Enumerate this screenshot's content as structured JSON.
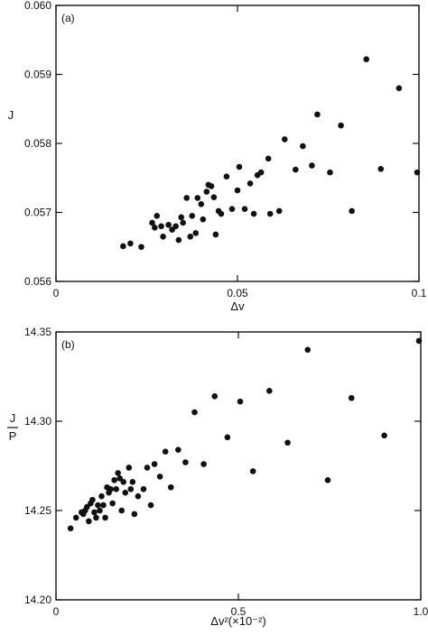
{
  "chart_data": [
    {
      "type": "scatter",
      "panel_label": "(a)",
      "xlabel": "Δv",
      "ylabel": "J",
      "xlim": [
        0,
        0.1
      ],
      "ylim": [
        0.056,
        0.06
      ],
      "x_ticks": [
        0,
        0.05,
        0.1
      ],
      "x_tick_labels": [
        "0",
        "0.05",
        "0.1"
      ],
      "y_ticks": [
        0.056,
        0.057,
        0.058,
        0.059,
        0.06
      ],
      "y_tick_labels": [
        "0.056",
        "0.057",
        "0.058",
        "0.059",
        "0.060"
      ],
      "grid": false,
      "points": [
        [
          0.0185,
          0.05651
        ],
        [
          0.0205,
          0.05655
        ],
        [
          0.0235,
          0.0565
        ],
        [
          0.0265,
          0.05685
        ],
        [
          0.0272,
          0.05678
        ],
        [
          0.0278,
          0.05695
        ],
        [
          0.029,
          0.0568
        ],
        [
          0.0295,
          0.05665
        ],
        [
          0.031,
          0.05682
        ],
        [
          0.032,
          0.05675
        ],
        [
          0.033,
          0.0568
        ],
        [
          0.0338,
          0.0566
        ],
        [
          0.0345,
          0.05693
        ],
        [
          0.035,
          0.05685
        ],
        [
          0.036,
          0.05721
        ],
        [
          0.037,
          0.05665
        ],
        [
          0.0375,
          0.05695
        ],
        [
          0.0385,
          0.0567
        ],
        [
          0.039,
          0.05721
        ],
        [
          0.04,
          0.05712
        ],
        [
          0.0405,
          0.0569
        ],
        [
          0.0415,
          0.0573
        ],
        [
          0.042,
          0.0574
        ],
        [
          0.0428,
          0.05738
        ],
        [
          0.0435,
          0.05722
        ],
        [
          0.044,
          0.05668
        ],
        [
          0.0448,
          0.05702
        ],
        [
          0.0455,
          0.05698
        ],
        [
          0.047,
          0.05752
        ],
        [
          0.0485,
          0.05705
        ],
        [
          0.05,
          0.05732
        ],
        [
          0.0505,
          0.05766
        ],
        [
          0.052,
          0.05705
        ],
        [
          0.0535,
          0.05742
        ],
        [
          0.0545,
          0.05698
        ],
        [
          0.0555,
          0.05754
        ],
        [
          0.0565,
          0.05758
        ],
        [
          0.0585,
          0.05778
        ],
        [
          0.059,
          0.05698
        ],
        [
          0.0615,
          0.05702
        ],
        [
          0.063,
          0.05806
        ],
        [
          0.066,
          0.05762
        ],
        [
          0.068,
          0.05796
        ],
        [
          0.0705,
          0.05768
        ],
        [
          0.072,
          0.05842
        ],
        [
          0.0755,
          0.05758
        ],
        [
          0.0785,
          0.05826
        ],
        [
          0.0815,
          0.05702
        ],
        [
          0.0855,
          0.05922
        ],
        [
          0.0895,
          0.05763
        ],
        [
          0.0945,
          0.0588
        ],
        [
          0.0995,
          0.05758
        ]
      ]
    },
    {
      "type": "scatter",
      "panel_label": "(b)",
      "xlabel": "Δv²(×10⁻²)",
      "ylabel": "J/P",
      "ylabel_numerator": "J",
      "ylabel_denominator": "P",
      "xlim": [
        0,
        1.0
      ],
      "ylim": [
        14.2,
        14.35
      ],
      "x_ticks": [
        0,
        0.5,
        1.0
      ],
      "x_tick_labels": [
        "0",
        "0.5",
        "1.0"
      ],
      "y_ticks": [
        14.2,
        14.25,
        14.3,
        14.35
      ],
      "y_tick_labels": [
        "14.20",
        "14.25",
        "14.30",
        "14.35"
      ],
      "grid": false,
      "points": [
        [
          0.04,
          14.24
        ],
        [
          0.055,
          14.246
        ],
        [
          0.07,
          14.249
        ],
        [
          0.075,
          14.248
        ],
        [
          0.08,
          14.25
        ],
        [
          0.085,
          14.252
        ],
        [
          0.09,
          14.244
        ],
        [
          0.095,
          14.254
        ],
        [
          0.1,
          14.256
        ],
        [
          0.105,
          14.249
        ],
        [
          0.11,
          14.246
        ],
        [
          0.115,
          14.253
        ],
        [
          0.12,
          14.25
        ],
        [
          0.125,
          14.258
        ],
        [
          0.13,
          14.253
        ],
        [
          0.135,
          14.246
        ],
        [
          0.14,
          14.263
        ],
        [
          0.145,
          14.26
        ],
        [
          0.15,
          14.262
        ],
        [
          0.155,
          14.254
        ],
        [
          0.16,
          14.267
        ],
        [
          0.165,
          14.262
        ],
        [
          0.17,
          14.271
        ],
        [
          0.175,
          14.268
        ],
        [
          0.18,
          14.25
        ],
        [
          0.185,
          14.266
        ],
        [
          0.19,
          14.26
        ],
        [
          0.2,
          14.274
        ],
        [
          0.205,
          14.262
        ],
        [
          0.21,
          14.266
        ],
        [
          0.215,
          14.248
        ],
        [
          0.225,
          14.258
        ],
        [
          0.24,
          14.262
        ],
        [
          0.25,
          14.274
        ],
        [
          0.26,
          14.253
        ],
        [
          0.27,
          14.276
        ],
        [
          0.285,
          14.269
        ],
        [
          0.3,
          14.283
        ],
        [
          0.315,
          14.263
        ],
        [
          0.335,
          14.284
        ],
        [
          0.355,
          14.277
        ],
        [
          0.38,
          14.305
        ],
        [
          0.405,
          14.276
        ],
        [
          0.435,
          14.314
        ],
        [
          0.47,
          14.291
        ],
        [
          0.505,
          14.311
        ],
        [
          0.54,
          14.272
        ],
        [
          0.585,
          14.317
        ],
        [
          0.635,
          14.288
        ],
        [
          0.69,
          14.34
        ],
        [
          0.745,
          14.267
        ],
        [
          0.81,
          14.313
        ],
        [
          0.9,
          14.292
        ],
        [
          0.995,
          14.345
        ]
      ]
    }
  ]
}
